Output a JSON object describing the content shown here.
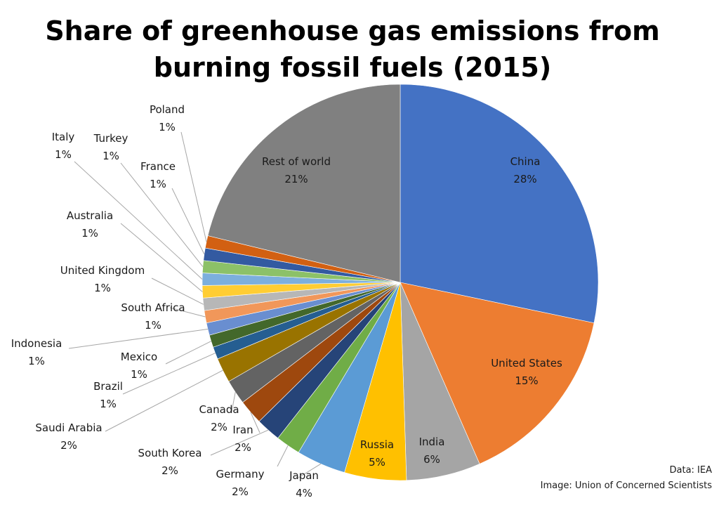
{
  "title_line1": "Share of greenhouse gas emissions from",
  "title_line2": "burning fossil fuels (2015)",
  "credit_data": "Data: IEA",
  "credit_image": "Image: Union of Concerned Scientists",
  "chart_data": {
    "type": "pie",
    "title": "Share of greenhouse gas emissions from burning fossil fuels (2015)",
    "slices": [
      {
        "label": "China",
        "value": 28,
        "value_label": "28%",
        "color": "#4472c4"
      },
      {
        "label": "United States",
        "value": 15,
        "value_label": "15%",
        "color": "#ed7d31"
      },
      {
        "label": "India",
        "value": 6,
        "value_label": "6%",
        "color": "#a5a5a5"
      },
      {
        "label": "Russia",
        "value": 5,
        "value_label": "5%",
        "color": "#ffc000"
      },
      {
        "label": "Japan",
        "value": 4,
        "value_label": "4%",
        "color": "#5b9bd5"
      },
      {
        "label": "Germany",
        "value": 2,
        "value_label": "2%",
        "color": "#70ad47"
      },
      {
        "label": "South Korea",
        "value": 2,
        "value_label": "2%",
        "color": "#264478"
      },
      {
        "label": "Iran",
        "value": 2,
        "value_label": "2%",
        "color": "#9e480e"
      },
      {
        "label": "Canada",
        "value": 2,
        "value_label": "2%",
        "color": "#636363"
      },
      {
        "label": "Saudi Arabia",
        "value": 2,
        "value_label": "2%",
        "color": "#997300"
      },
      {
        "label": "Brazil",
        "value": 1,
        "value_label": "1%",
        "color": "#255e91"
      },
      {
        "label": "Mexico",
        "value": 1,
        "value_label": "1%",
        "color": "#43682b"
      },
      {
        "label": "Indonesia",
        "value": 1,
        "value_label": "1%",
        "color": "#698ed0"
      },
      {
        "label": "South Africa",
        "value": 1,
        "value_label": "1%",
        "color": "#f1975a"
      },
      {
        "label": "United Kingdom",
        "value": 1,
        "value_label": "1%",
        "color": "#b7b7b7"
      },
      {
        "label": "Australia",
        "value": 1,
        "value_label": "1%",
        "color": "#ffcd33"
      },
      {
        "label": "Italy",
        "value": 1,
        "value_label": "1%",
        "color": "#7cafdd"
      },
      {
        "label": "Turkey",
        "value": 1,
        "value_label": "1%",
        "color": "#8cc168"
      },
      {
        "label": "France",
        "value": 1,
        "value_label": "1%",
        "color": "#335aa1"
      },
      {
        "label": "Poland",
        "value": 1,
        "value_label": "1%",
        "color": "#d26012"
      },
      {
        "label": "Rest of world",
        "value": 21,
        "value_label": "21%",
        "color": "#808080"
      }
    ]
  }
}
